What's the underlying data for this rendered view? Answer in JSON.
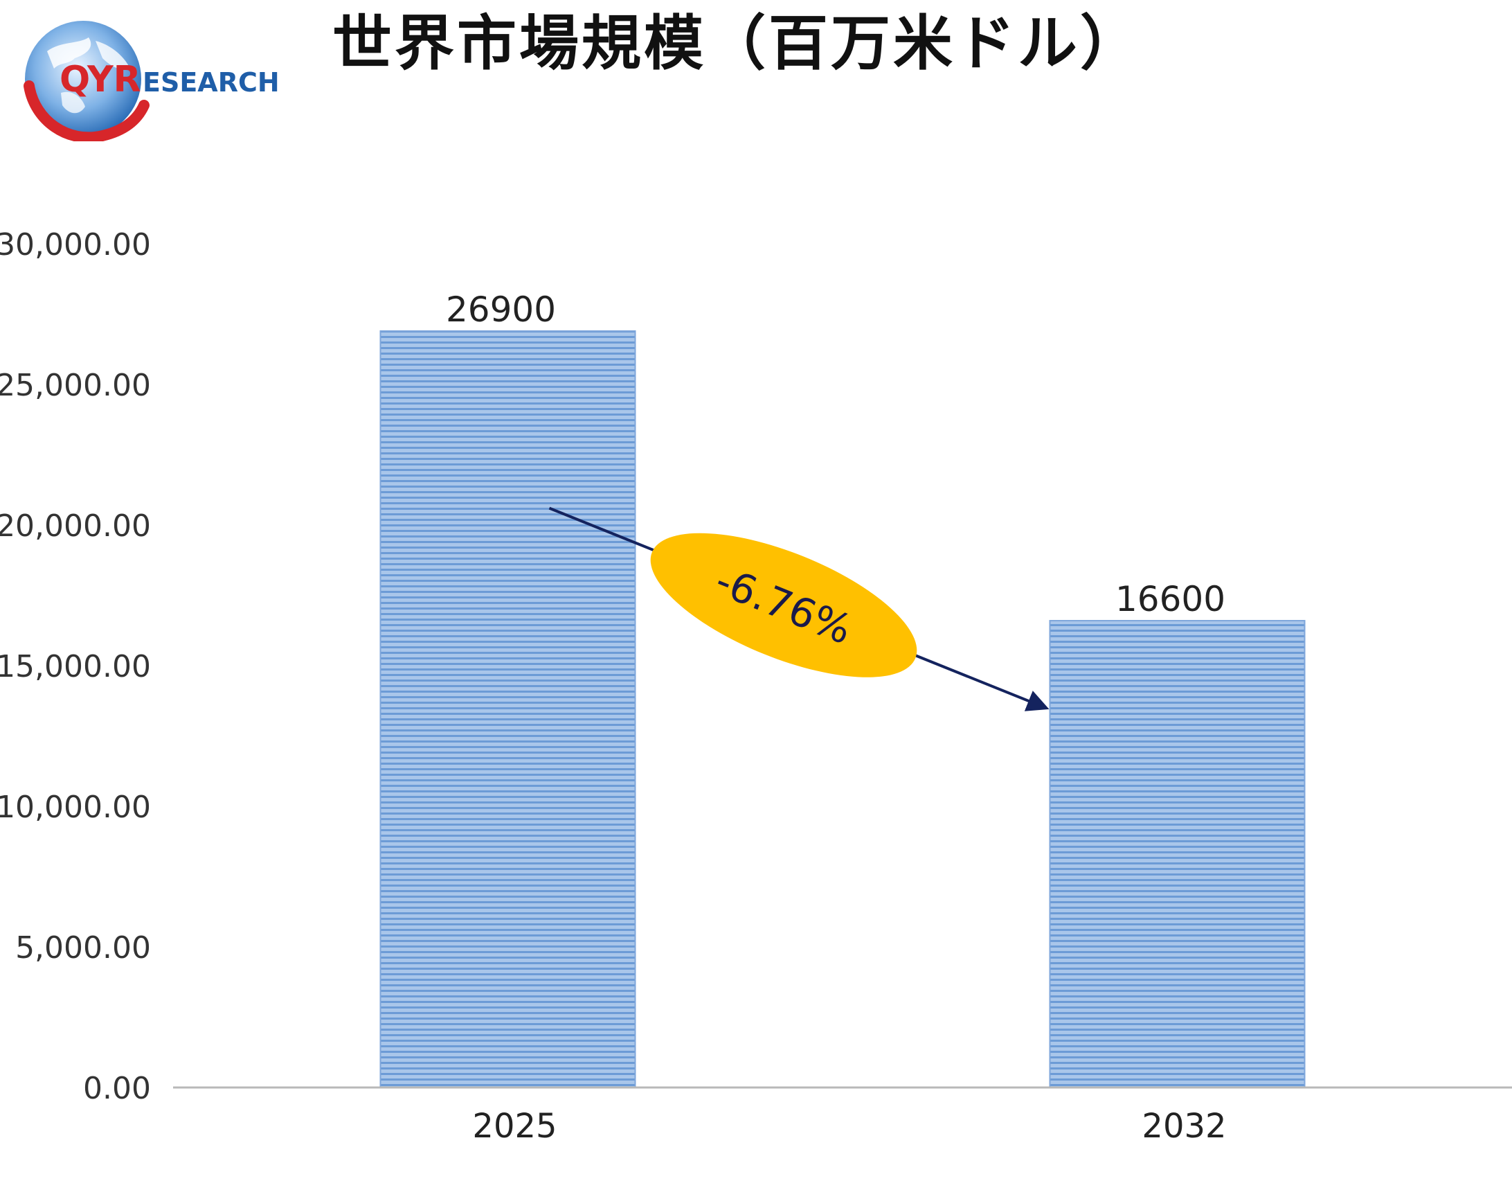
{
  "brand": {
    "logo_q": "Q",
    "logo_yr": "YR",
    "logo_rest": "ESEARCH",
    "colors": {
      "red": "#d7262a",
      "blue": "#1f5ea8"
    }
  },
  "chart_data": {
    "type": "bar",
    "title": "世界市場規模（百万米ドル）",
    "categories": [
      "2025",
      "2032"
    ],
    "values": [
      26900,
      16600
    ],
    "data_labels": [
      "26900",
      "16600"
    ],
    "ylim": [
      0,
      30000
    ],
    "yticks": [
      0,
      5000,
      10000,
      15000,
      20000,
      25000,
      30000
    ],
    "ytick_labels": [
      "0.00",
      "5,000.00",
      "10,000.00",
      "15,000.00",
      "20,000.00",
      "25,000.00",
      "30,000.00"
    ],
    "grid": false,
    "legend": "none",
    "bar_color": "#8fb3e0",
    "annotation": {
      "text": "-6.76%",
      "from": {
        "category": "2025",
        "value": 20600
      },
      "to": {
        "category": "2032",
        "value": 13500
      },
      "badge_color": "#ffc000",
      "arrow_color": "#14235e"
    }
  }
}
